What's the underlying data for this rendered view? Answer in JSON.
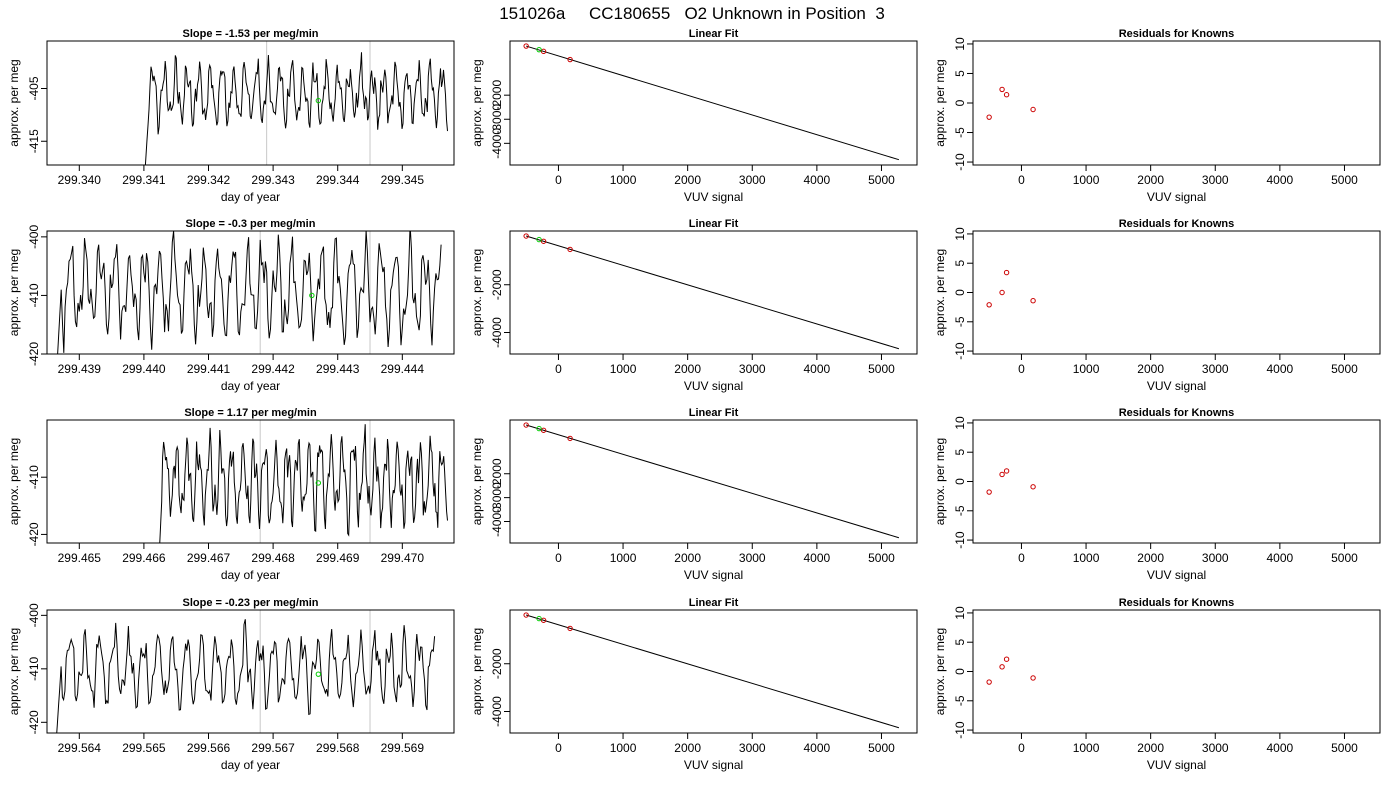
{
  "figure": {
    "title": "151026a     CC180655   O2 Unknown in Position  3"
  },
  "colors": {
    "trace": "#000000",
    "unknown_point": "#00cc00",
    "known_point": "#cc0000",
    "marker_line": "#c8c8c8",
    "frame": "#000000"
  },
  "chart_data": [
    {
      "type": "line",
      "row": 1,
      "col": 1,
      "title": "Slope =  -1.53  per meg/min",
      "xlabel": "day of year",
      "ylabel": "approx. per meg",
      "xlim": [
        299.3395,
        299.3458
      ],
      "ylim": [
        -419.5,
        -396.0
      ],
      "xticks": [
        299.34,
        299.341,
        299.342,
        299.343,
        299.344,
        299.345
      ],
      "xtick_labels": [
        "299.340",
        "299.341",
        "299.342",
        "299.343",
        "299.344",
        "299.345"
      ],
      "yticks": [
        -405,
        -415
      ],
      "ytick_labels": [
        "-405",
        "-415"
      ],
      "vlines": [
        299.3429,
        299.3445
      ],
      "unknown_point": [
        299.3437,
        -407.3
      ],
      "trace": {
        "t_start": 299.341,
        "t_end": 299.3457,
        "center": -406.0,
        "amplitude": 6.0,
        "seed": 11
      }
    },
    {
      "type": "scatter",
      "row": 1,
      "col": 2,
      "title": "Linear Fit",
      "xlabel": "VUV signal",
      "ylabel": "approx. per meg",
      "xlim": [
        -750,
        5550
      ],
      "ylim": [
        -4900,
        250
      ],
      "xticks": [
        0,
        1000,
        2000,
        3000,
        4000,
        5000
      ],
      "xtick_labels": [
        "0",
        "1000",
        "2000",
        "3000",
        "4000",
        "5000"
      ],
      "yticks": [
        -2000,
        -3000,
        -4000
      ],
      "ytick_labels": [
        "-2000",
        "-3000",
        "-4000"
      ],
      "fit_line": [
        [
          -500,
          40
        ],
        [
          5270,
          -4680
        ]
      ],
      "known_points": [
        [
          -500,
          40
        ],
        [
          -230,
          -180
        ],
        [
          180,
          -520
        ]
      ],
      "unknown_points": [
        [
          -300,
          -110
        ]
      ]
    },
    {
      "type": "scatter",
      "row": 1,
      "col": 3,
      "title": "Residuals for Knowns",
      "xlabel": "VUV signal",
      "ylabel": "approx. per meg",
      "xlim": [
        -750,
        5550
      ],
      "ylim": [
        -10.5,
        10.5
      ],
      "xticks": [
        0,
        1000,
        2000,
        3000,
        4000,
        5000
      ],
      "xtick_labels": [
        "0",
        "1000",
        "2000",
        "3000",
        "4000",
        "5000"
      ],
      "yticks": [
        -10,
        -5,
        0,
        5,
        10
      ],
      "ytick_labels": [
        "-10",
        "-5",
        "0",
        "5",
        "10"
      ],
      "known_points": [
        [
          -500,
          -2.4
        ],
        [
          -300,
          2.3
        ],
        [
          -230,
          1.4
        ],
        [
          180,
          -1.1
        ]
      ]
    },
    {
      "type": "line",
      "row": 2,
      "col": 1,
      "title": "Slope =  -0.3  per meg/min",
      "xlabel": "day of year",
      "ylabel": "approx. per meg",
      "xlim": [
        299.4385,
        299.4448
      ],
      "ylim": [
        -420.0,
        -399.0
      ],
      "xticks": [
        299.439,
        299.44,
        299.441,
        299.442,
        299.443,
        299.444
      ],
      "xtick_labels": [
        "299.439",
        "299.440",
        "299.441",
        "299.442",
        "299.443",
        "299.444"
      ],
      "yticks": [
        -400,
        -410,
        -420
      ],
      "ytick_labels": [
        "-400",
        "-410",
        "-420"
      ],
      "vlines": [
        299.4418,
        299.4435
      ],
      "unknown_point": [
        299.4426,
        -410.0
      ],
      "trace": {
        "t_start": 299.4386,
        "t_end": 299.4446,
        "center": -409.0,
        "amplitude": 8.0,
        "seed": 23
      }
    },
    {
      "type": "scatter",
      "row": 2,
      "col": 2,
      "title": "Linear Fit",
      "xlabel": "VUV signal",
      "ylabel": "approx. per meg",
      "xlim": [
        -750,
        5550
      ],
      "ylim": [
        -4900,
        250
      ],
      "xticks": [
        0,
        1000,
        2000,
        3000,
        4000,
        5000
      ],
      "xtick_labels": [
        "0",
        "1000",
        "2000",
        "3000",
        "4000",
        "5000"
      ],
      "yticks": [
        -2000,
        -4000
      ],
      "ytick_labels": [
        "-2000",
        "-4000"
      ],
      "fit_line": [
        [
          -500,
          40
        ],
        [
          5270,
          -4680
        ]
      ],
      "known_points": [
        [
          -500,
          40
        ],
        [
          -230,
          -180
        ],
        [
          180,
          -520
        ]
      ],
      "unknown_points": [
        [
          -300,
          -110
        ]
      ]
    },
    {
      "type": "scatter",
      "row": 2,
      "col": 3,
      "title": "Residuals for Knowns",
      "xlabel": "VUV signal",
      "ylabel": "approx. per meg",
      "xlim": [
        -750,
        5550
      ],
      "ylim": [
        -10.5,
        10.5
      ],
      "xticks": [
        0,
        1000,
        2000,
        3000,
        4000,
        5000
      ],
      "xtick_labels": [
        "0",
        "1000",
        "2000",
        "3000",
        "4000",
        "5000"
      ],
      "yticks": [
        -10,
        -5,
        0,
        5,
        10
      ],
      "ytick_labels": [
        "-10",
        "-5",
        "0",
        "5",
        "10"
      ],
      "known_points": [
        [
          -500,
          -2.1
        ],
        [
          -300,
          0.0
        ],
        [
          -230,
          3.4
        ],
        [
          180,
          -1.4
        ]
      ]
    },
    {
      "type": "line",
      "row": 3,
      "col": 1,
      "title": "Slope =  1.17  per meg/min",
      "xlabel": "day of year",
      "ylabel": "approx. per meg",
      "xlim": [
        299.4645,
        299.4708
      ],
      "ylim": [
        -421.5,
        -400.0
      ],
      "xticks": [
        299.465,
        299.466,
        299.467,
        299.468,
        299.469,
        299.47
      ],
      "xtick_labels": [
        "299.465",
        "299.466",
        "299.467",
        "299.468",
        "299.469",
        "299.470"
      ],
      "yticks": [
        -410,
        -420
      ],
      "ytick_labels": [
        "-410",
        "-420"
      ],
      "vlines": [
        299.4678,
        299.4695
      ],
      "unknown_point": [
        299.4687,
        -411.0
      ],
      "trace": {
        "t_start": 299.4662,
        "t_end": 299.4707,
        "center": -410.5,
        "amplitude": 7.5,
        "seed": 37
      }
    },
    {
      "type": "scatter",
      "row": 3,
      "col": 2,
      "title": "Linear Fit",
      "xlabel": "VUV signal",
      "ylabel": "approx. per meg",
      "xlim": [
        -750,
        5550
      ],
      "ylim": [
        -4900,
        250
      ],
      "xticks": [
        0,
        1000,
        2000,
        3000,
        4000,
        5000
      ],
      "xtick_labels": [
        "0",
        "1000",
        "2000",
        "3000",
        "4000",
        "5000"
      ],
      "yticks": [
        -2000,
        -3000,
        -4000
      ],
      "ytick_labels": [
        "-2000",
        "-3000",
        "-4000"
      ],
      "fit_line": [
        [
          -500,
          40
        ],
        [
          5270,
          -4680
        ]
      ],
      "known_points": [
        [
          -500,
          40
        ],
        [
          -230,
          -180
        ],
        [
          180,
          -520
        ]
      ],
      "unknown_points": [
        [
          -300,
          -110
        ]
      ]
    },
    {
      "type": "scatter",
      "row": 3,
      "col": 3,
      "title": "Residuals for Knowns",
      "xlabel": "VUV signal",
      "ylabel": "approx. per meg",
      "xlim": [
        -750,
        5550
      ],
      "ylim": [
        -10.5,
        10.5
      ],
      "xticks": [
        0,
        1000,
        2000,
        3000,
        4000,
        5000
      ],
      "xtick_labels": [
        "0",
        "1000",
        "2000",
        "3000",
        "4000",
        "5000"
      ],
      "yticks": [
        -10,
        -5,
        0,
        5,
        10
      ],
      "ytick_labels": [
        "-10",
        "-5",
        "0",
        "5",
        "10"
      ],
      "known_points": [
        [
          -500,
          -1.8
        ],
        [
          -300,
          1.2
        ],
        [
          -230,
          1.8
        ],
        [
          180,
          -0.9
        ]
      ]
    },
    {
      "type": "line",
      "row": 4,
      "col": 1,
      "title": "Slope =  -0.23  per meg/min",
      "xlabel": "day of year",
      "ylabel": "approx. per meg",
      "xlim": [
        299.5635,
        299.5698
      ],
      "ylim": [
        -422.0,
        -399.0
      ],
      "xticks": [
        299.564,
        299.565,
        299.566,
        299.567,
        299.568,
        299.569
      ],
      "xtick_labels": [
        "299.564",
        "299.565",
        "299.566",
        "299.567",
        "299.568",
        "299.569"
      ],
      "yticks": [
        -400,
        -410,
        -420
      ],
      "ytick_labels": [
        "-400",
        "-410",
        "-420"
      ],
      "vlines": [
        299.5668,
        299.5685
      ],
      "unknown_point": [
        299.5677,
        -411.0
      ],
      "trace": {
        "t_start": 299.5636,
        "t_end": 299.5695,
        "center": -410.0,
        "amplitude": 7.0,
        "seed": 53
      }
    },
    {
      "type": "scatter",
      "row": 4,
      "col": 2,
      "title": "Linear Fit",
      "xlabel": "VUV signal",
      "ylabel": "approx. per meg",
      "xlim": [
        -750,
        5550
      ],
      "ylim": [
        -4900,
        250
      ],
      "xticks": [
        0,
        1000,
        2000,
        3000,
        4000,
        5000
      ],
      "xtick_labels": [
        "0",
        "1000",
        "2000",
        "3000",
        "4000",
        "5000"
      ],
      "yticks": [
        -2000,
        -4000
      ],
      "ytick_labels": [
        "-2000",
        "-4000"
      ],
      "fit_line": [
        [
          -500,
          40
        ],
        [
          5270,
          -4680
        ]
      ],
      "known_points": [
        [
          -500,
          40
        ],
        [
          -230,
          -180
        ],
        [
          180,
          -520
        ]
      ],
      "unknown_points": [
        [
          -300,
          -110
        ]
      ]
    },
    {
      "type": "scatter",
      "row": 4,
      "col": 3,
      "title": "Residuals for Knowns",
      "xlabel": "VUV signal",
      "ylabel": "approx. per meg",
      "xlim": [
        -750,
        5550
      ],
      "ylim": [
        -10.5,
        10.5
      ],
      "xticks": [
        0,
        1000,
        2000,
        3000,
        4000,
        5000
      ],
      "xtick_labels": [
        "0",
        "1000",
        "2000",
        "3000",
        "4000",
        "5000"
      ],
      "yticks": [
        -10,
        -5,
        0,
        5,
        10
      ],
      "ytick_labels": [
        "-10",
        "-5",
        "0",
        "5",
        "10"
      ],
      "known_points": [
        [
          -500,
          -1.8
        ],
        [
          -300,
          0.8
        ],
        [
          -230,
          2.1
        ],
        [
          180,
          -1.1
        ]
      ]
    }
  ]
}
